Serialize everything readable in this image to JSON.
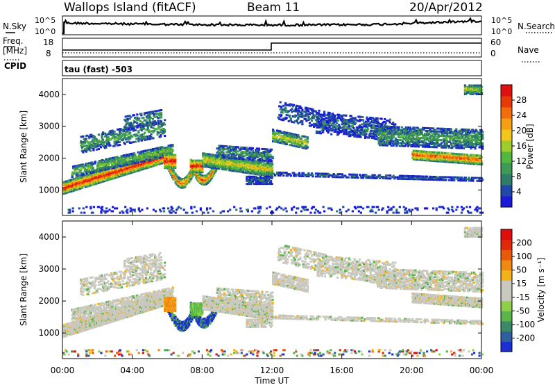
{
  "header": {
    "station": "Wallops Island (fitACF)",
    "beam": "Beam 11",
    "date": "20/Apr/2012"
  },
  "noise_panel": {
    "left_label": "N.Sky",
    "right_label": "N.Search",
    "left_ticks": [
      "10^5",
      "10^0"
    ],
    "right_ticks": [
      "10^5",
      "10^0"
    ]
  },
  "freq_panel": {
    "left_label": "Freq.",
    "left_unit": "[MHz]",
    "cpid_label": "CPID",
    "left_ticks": [
      "18",
      "8"
    ],
    "right_label": "Nave",
    "right_ticks": [
      "60",
      "0"
    ]
  },
  "cpid_text": "tau (fast) -503",
  "chart_data": [
    {
      "type": "heatmap",
      "name": "power",
      "ylabel": "Slant Range [km]",
      "ylim": [
        200,
        4500
      ],
      "yticks": [
        1000,
        2000,
        3000,
        4000
      ],
      "xlim": [
        0,
        24
      ],
      "colorbar": {
        "label": "Power [dB]",
        "ticks": [
          4,
          8,
          12,
          16,
          20,
          24,
          28
        ],
        "colors": [
          "#1a1ad8",
          "#2147a8",
          "#2f7c6a",
          "#3f9a55",
          "#55b640",
          "#9ccd2a",
          "#f4c61b",
          "#f5a012",
          "#f26d0c",
          "#e83a09",
          "#e01010"
        ]
      }
    },
    {
      "type": "heatmap",
      "name": "velocity",
      "ylabel": "Slant Range [km]",
      "ylim": [
        200,
        4500
      ],
      "yticks": [
        1000,
        2000,
        3000,
        4000
      ],
      "xlim": [
        0,
        24
      ],
      "xticks": [
        "00:00",
        "04:00",
        "08:00",
        "12:00",
        "16:00",
        "20:00",
        "00:00"
      ],
      "xlabel": "Time UT",
      "colorbar": {
        "label": "Velocity [m s⁻¹]",
        "ticks": [
          "200",
          "100",
          "50",
          "15",
          "-15",
          "-50",
          "-100",
          "-200"
        ],
        "colors": [
          "#1c2fd0",
          "#2f5fa0",
          "#3b8a66",
          "#5ab64a",
          "#8fd04a",
          "#c9c9c0",
          "#c9c9c0",
          "#f4b21a",
          "#f08a10",
          "#e85a0a",
          "#e02a08",
          "#e00d0d"
        ]
      }
    }
  ]
}
